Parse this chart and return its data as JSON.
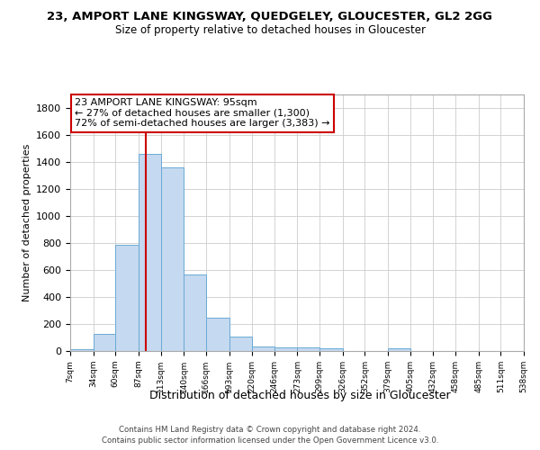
{
  "title1": "23, AMPORT LANE KINGSWAY, QUEDGELEY, GLOUCESTER, GL2 2GG",
  "title2": "Size of property relative to detached houses in Gloucester",
  "xlabel": "Distribution of detached houses by size in Gloucester",
  "ylabel": "Number of detached properties",
  "property_size": 95,
  "property_label": "23 AMPORT LANE KINGSWAY: 95sqm",
  "annotation_line1": "← 27% of detached houses are smaller (1,300)",
  "annotation_line2": "72% of semi-detached houses are larger (3,383) →",
  "footnote1": "Contains HM Land Registry data © Crown copyright and database right 2024.",
  "footnote2": "Contains public sector information licensed under the Open Government Licence v3.0.",
  "bar_color": "#c5d9f0",
  "bar_edge_color": "#6aaad4",
  "vline_color": "#cc0000",
  "annotation_box_color": "#cc0000",
  "background_color": "#ffffff",
  "grid_color": "#cccccc",
  "bin_edges": [
    7,
    34,
    60,
    87,
    113,
    140,
    166,
    193,
    220,
    246,
    273,
    299,
    326,
    352,
    379,
    405,
    432,
    458,
    485,
    511,
    538
  ],
  "bar_heights": [
    15,
    130,
    790,
    1460,
    1360,
    565,
    250,
    110,
    35,
    30,
    30,
    20,
    0,
    0,
    20,
    0,
    0,
    0,
    0,
    0
  ],
  "ylim": [
    0,
    1900
  ],
  "yticks": [
    0,
    200,
    400,
    600,
    800,
    1000,
    1200,
    1400,
    1600,
    1800
  ]
}
